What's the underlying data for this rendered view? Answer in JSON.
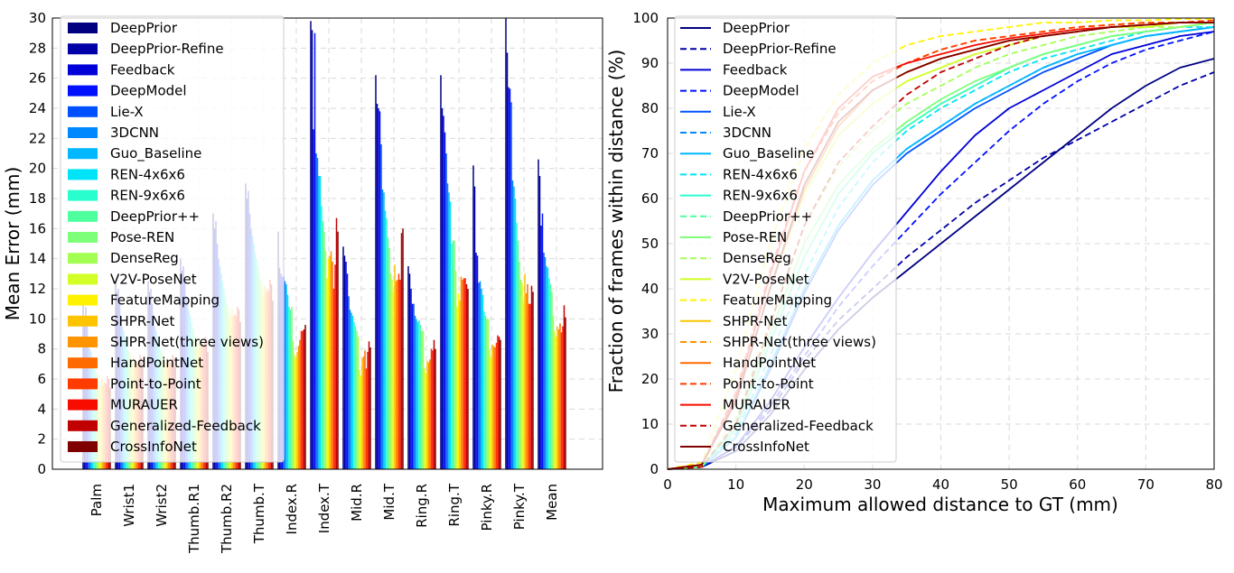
{
  "chart_data": [
    {
      "type": "bar",
      "xlabel": "",
      "ylabel": "Mean Error (mm)",
      "ylim": [
        0,
        30
      ],
      "yticks": [
        "0",
        "2",
        "4",
        "6",
        "8",
        "10",
        "12",
        "14",
        "16",
        "18",
        "20",
        "22",
        "24",
        "26",
        "28",
        "30"
      ],
      "grid": true,
      "legend_position": "upper-left",
      "categories": [
        "Palm",
        "Wrist1",
        "Wrist2",
        "Thumb.R1",
        "Thumb.R2",
        "Thumb.T",
        "Index.R",
        "Index.T",
        "Mid.R",
        "Mid.T",
        "Ring.R",
        "Ring.T",
        "Pinky.R",
        "Pinky.T",
        "Mean"
      ],
      "series": [
        {
          "name": "DeepPrior",
          "color": "#000080",
          "values": [
            11.0,
            12.5,
            12.5,
            14.0,
            17.0,
            19.0,
            15.8,
            29.8,
            14.8,
            26.2,
            13.5,
            26.2,
            20.2,
            30.0,
            20.6
          ]
        },
        {
          "name": "DeepPrior-Refine",
          "color": "#0000a8",
          "values": [
            10.2,
            11.8,
            11.8,
            13.2,
            16.0,
            18.0,
            13.4,
            29.2,
            14.2,
            24.3,
            13.0,
            24.0,
            18.8,
            27.7,
            19.5
          ]
        },
        {
          "name": "Feedback",
          "color": "#0000d8",
          "values": [
            10.8,
            12.0,
            12.0,
            13.5,
            16.5,
            18.5,
            13.0,
            22.6,
            13.8,
            24.0,
            12.0,
            23.5,
            14.4,
            25.4,
            16.2
          ]
        },
        {
          "name": "DeepModel",
          "color": "#0010ff",
          "values": [
            9.5,
            11.0,
            11.0,
            12.5,
            15.0,
            17.0,
            12.8,
            29.0,
            13.0,
            23.8,
            11.0,
            22.4,
            14.2,
            25.3,
            17.0
          ]
        },
        {
          "name": "Lie-X",
          "color": "#0050ff",
          "values": [
            8.5,
            10.0,
            10.0,
            11.5,
            14.0,
            16.0,
            12.8,
            21.0,
            11.5,
            21.6,
            11.0,
            21.0,
            12.4,
            24.4,
            14.4
          ]
        },
        {
          "name": "3DCNN",
          "color": "#0088ff",
          "values": [
            8.0,
            9.5,
            9.5,
            11.0,
            13.5,
            15.5,
            12.5,
            20.7,
            10.6,
            18.6,
            10.2,
            19.0,
            12.5,
            19.2,
            14.1
          ]
        },
        {
          "name": "Guo_Baseline",
          "color": "#00b8ff",
          "values": [
            7.8,
            9.2,
            9.2,
            10.6,
            13.0,
            15.0,
            12.3,
            19.5,
            10.4,
            18.4,
            10.0,
            18.4,
            12.0,
            18.8,
            13.5
          ]
        },
        {
          "name": "REN-4x6x6",
          "color": "#00e4f8",
          "values": [
            7.4,
            8.8,
            8.8,
            10.2,
            12.5,
            14.4,
            11.6,
            19.5,
            10.2,
            17.2,
            9.8,
            17.8,
            11.6,
            18.0,
            13.4
          ]
        },
        {
          "name": "REN-9x6x6",
          "color": "#29ffce",
          "values": [
            7.0,
            8.4,
            8.4,
            9.8,
            12.0,
            14.0,
            10.8,
            17.5,
            9.8,
            16.7,
            9.9,
            15.0,
            10.5,
            16.4,
            12.7
          ]
        },
        {
          "name": "DeepPrior++",
          "color": "#4dff9d",
          "values": [
            6.6,
            8.0,
            8.0,
            9.4,
            11.5,
            13.5,
            10.6,
            16.5,
            9.5,
            15.4,
            9.6,
            15.2,
            10.2,
            15.2,
            12.3
          ]
        },
        {
          "name": "Pose-REN",
          "color": "#7dff7a",
          "values": [
            6.4,
            7.8,
            7.8,
            9.0,
            11.0,
            13.0,
            10.8,
            15.8,
            9.2,
            14.7,
            9.2,
            15.2,
            10.0,
            13.8,
            11.8
          ]
        },
        {
          "name": "DenseReg",
          "color": "#a4ff53",
          "values": [
            6.2,
            7.6,
            7.6,
            8.8,
            10.8,
            12.6,
            8.5,
            14.5,
            8.8,
            13.0,
            9.2,
            13.2,
            10.0,
            12.6,
            10.2
          ]
        },
        {
          "name": "V2V-PoseNet",
          "color": "#d1ff26",
          "values": [
            5.8,
            7.2,
            7.2,
            8.4,
            10.4,
            12.0,
            7.6,
            12.7,
            6.6,
            12.6,
            6.7,
            10.8,
            7.9,
            12.4,
            9.2
          ]
        },
        {
          "name": "FeatureMapping",
          "color": "#fff200",
          "values": [
            5.5,
            7.0,
            7.0,
            8.0,
            10.0,
            11.5,
            7.4,
            14.0,
            6.2,
            11.8,
            6.4,
            11.7,
            7.4,
            11.2,
            8.8
          ]
        },
        {
          "name": "SHPR-Net",
          "color": "#ffc400",
          "values": [
            6.0,
            7.4,
            7.4,
            8.6,
            10.6,
            12.2,
            7.8,
            14.2,
            7.4,
            13.6,
            7.2,
            11.2,
            8.3,
            13.0,
            9.5
          ]
        },
        {
          "name": "SHPR-Net(three views)",
          "color": "#ff9400",
          "values": [
            5.6,
            7.1,
            7.1,
            8.2,
            10.2,
            11.8,
            8.2,
            14.5,
            7.5,
            12.5,
            7.1,
            12.8,
            8.2,
            11.7,
            9.3
          ]
        },
        {
          "name": "HandPointNet",
          "color": "#ff6a00",
          "values": [
            5.8,
            7.2,
            7.2,
            8.3,
            10.3,
            12.0,
            8.6,
            13.8,
            7.9,
            12.6,
            7.3,
            12.6,
            8.1,
            12.3,
            9.7
          ]
        },
        {
          "name": "Point-to-Point",
          "color": "#ff3b00",
          "values": [
            5.7,
            7.1,
            7.1,
            8.2,
            10.2,
            11.8,
            9.2,
            12.0,
            6.7,
            13.0,
            8.0,
            12.7,
            8.4,
            11.0,
            9.1
          ]
        },
        {
          "name": "MURAUER",
          "color": "#f80c00",
          "values": [
            6.2,
            7.6,
            7.6,
            8.8,
            10.8,
            12.6,
            9.2,
            13.6,
            7.8,
            12.6,
            7.9,
            12.7,
            8.9,
            11.0,
            9.5
          ]
        },
        {
          "name": "Generalized-Feedback",
          "color": "#c10000",
          "values": [
            6.0,
            7.4,
            7.4,
            8.6,
            10.6,
            12.3,
            9.3,
            16.7,
            8.5,
            15.7,
            8.6,
            12.3,
            8.8,
            12.2,
            10.9
          ]
        },
        {
          "name": "CrossInfoNet",
          "color": "#800000",
          "values": [
            5.4,
            6.8,
            6.8,
            7.8,
            9.8,
            11.2,
            9.6,
            15.8,
            8.1,
            16.0,
            8.0,
            12.0,
            8.6,
            11.8,
            10.1
          ]
        }
      ]
    },
    {
      "type": "line",
      "xlabel": "Maximum allowed distance to GT (mm)",
      "ylabel": "Fraction of frames within distance (%)",
      "xlim": [
        0,
        80
      ],
      "ylim": [
        0,
        100
      ],
      "xticks": [
        "0",
        "10",
        "20",
        "30",
        "40",
        "50",
        "60",
        "70",
        "80"
      ],
      "yticks": [
        "0",
        "10",
        "20",
        "30",
        "40",
        "50",
        "60",
        "70",
        "80",
        "90",
        "100"
      ],
      "grid": true,
      "legend_position": "upper-left",
      "x": [
        0,
        5,
        10,
        15,
        20,
        25,
        30,
        35,
        40,
        45,
        50,
        55,
        60,
        65,
        70,
        75,
        80
      ],
      "series": [
        {
          "name": "DeepPrior",
          "color": "#000080",
          "dash": false,
          "values": [
            0,
            0.5,
            4,
            12,
            22,
            31,
            38,
            44,
            50,
            56,
            62,
            68,
            74,
            80,
            85,
            89,
            91
          ]
        },
        {
          "name": "DeepPrior-Refine",
          "color": "#0000a8",
          "dash": true,
          "values": [
            0,
            0.5,
            5,
            13,
            24,
            33,
            40,
            47,
            53,
            59,
            64,
            69,
            73,
            77,
            81,
            85,
            88
          ]
        },
        {
          "name": "Feedback",
          "color": "#0000d8",
          "dash": false,
          "values": [
            0,
            0.5,
            5,
            15,
            27,
            38,
            48,
            57,
            66,
            74,
            80,
            84,
            88,
            92,
            94,
            96,
            97
          ]
        },
        {
          "name": "DeepModel",
          "color": "#0010ff",
          "dash": true,
          "values": [
            0,
            0.5,
            5,
            14,
            25,
            36,
            45,
            53,
            61,
            68,
            75,
            81,
            86,
            90,
            93,
            95,
            97
          ]
        },
        {
          "name": "Lie-X",
          "color": "#0050ff",
          "dash": false,
          "values": [
            0,
            0.5,
            7,
            22,
            39,
            53,
            63,
            70,
            75,
            80,
            84,
            88,
            91,
            94,
            96,
            97,
            98
          ]
        },
        {
          "name": "3DCNN",
          "color": "#0088ff",
          "dash": true,
          "values": [
            0,
            0.5,
            7,
            23,
            40,
            54,
            64,
            71,
            76,
            81,
            85,
            89,
            92,
            94,
            96,
            97,
            98
          ]
        },
        {
          "name": "Guo_Baseline",
          "color": "#00b8ff",
          "dash": false,
          "values": [
            0,
            0.5,
            7,
            23,
            40,
            54,
            64,
            71,
            76,
            81,
            85,
            89,
            92,
            94,
            96,
            97,
            98
          ]
        },
        {
          "name": "REN-4x6x6",
          "color": "#00e4f8",
          "dash": true,
          "values": [
            0,
            0.5,
            8,
            25,
            43,
            58,
            68,
            75,
            80,
            84,
            88,
            91,
            93,
            95,
            97,
            98,
            98
          ]
        },
        {
          "name": "REN-9x6x6",
          "color": "#29ffce",
          "dash": false,
          "values": [
            0,
            0.5,
            9,
            28,
            47,
            61,
            70,
            76,
            81,
            85,
            89,
            92,
            94,
            96,
            97,
            98,
            99
          ]
        },
        {
          "name": "DeepPrior++",
          "color": "#4dff9d",
          "dash": true,
          "values": [
            0,
            0.5,
            9,
            28,
            47,
            61,
            70,
            76,
            81,
            85,
            89,
            92,
            94,
            96,
            97,
            98,
            99
          ]
        },
        {
          "name": "Pose-REN",
          "color": "#7dff7a",
          "dash": false,
          "values": [
            0,
            0.5,
            10,
            30,
            50,
            63,
            71,
            77,
            82,
            86,
            89,
            92,
            94,
            96,
            97,
            98,
            99
          ]
        },
        {
          "name": "DenseReg",
          "color": "#a4ff53",
          "dash": true,
          "values": [
            0,
            0.5,
            11,
            33,
            54,
            67,
            75,
            81,
            85,
            89,
            92,
            94,
            96,
            97,
            98,
            98,
            99
          ]
        },
        {
          "name": "V2V-PoseNet",
          "color": "#d1ff26",
          "dash": false,
          "values": [
            0,
            1,
            15,
            40,
            61,
            74,
            81,
            86,
            89,
            92,
            94,
            96,
            97,
            98,
            98,
            99,
            99
          ]
        },
        {
          "name": "FeatureMapping",
          "color": "#fff200",
          "dash": true,
          "values": [
            0,
            1.5,
            22,
            50,
            71,
            83,
            90,
            94,
            96,
            97,
            98,
            99,
            99,
            99.5,
            99.5,
            99.8,
            99.8
          ]
        },
        {
          "name": "SHPR-Net",
          "color": "#ffc400",
          "dash": false,
          "values": [
            0,
            1,
            15,
            40,
            62,
            76,
            84,
            88,
            91,
            93,
            95,
            96,
            97,
            98,
            98.5,
            99,
            99
          ]
        },
        {
          "name": "SHPR-Net(three views)",
          "color": "#ff9400",
          "dash": true,
          "values": [
            0,
            1,
            17,
            44,
            66,
            79,
            86,
            90,
            93,
            95,
            96,
            97,
            98,
            98.5,
            99,
            99,
            99.5
          ]
        },
        {
          "name": "HandPointNet",
          "color": "#ff6a00",
          "dash": false,
          "values": [
            0,
            1,
            15,
            40,
            62,
            76,
            84,
            88,
            91,
            93,
            95,
            96,
            97,
            98,
            98.5,
            99,
            99
          ]
        },
        {
          "name": "Point-to-Point",
          "color": "#ff3b00",
          "dash": true,
          "values": [
            0,
            1,
            17,
            44,
            66,
            79,
            86,
            90,
            93,
            95,
            96,
            97,
            98,
            98.5,
            99,
            99,
            99.5
          ]
        },
        {
          "name": "MURAUER",
          "color": "#f80c00",
          "dash": false,
          "values": [
            0,
            1,
            16,
            43,
            66,
            80,
            87,
            90,
            92,
            94,
            95.5,
            96.5,
            97.5,
            98,
            98.5,
            99,
            99
          ]
        },
        {
          "name": "Generalized-Feedback",
          "color": "#c10000",
          "dash": true,
          "values": [
            0,
            0.5,
            10,
            32,
            54,
            68,
            76,
            83,
            88,
            91,
            94,
            96,
            97,
            98,
            98.5,
            99,
            99
          ]
        },
        {
          "name": "CrossInfoNet",
          "color": "#800000",
          "dash": false,
          "values": [
            0,
            1,
            15,
            40,
            63,
            77,
            84,
            88,
            91,
            93,
            95,
            96,
            97,
            98,
            98.5,
            99,
            99
          ]
        }
      ]
    }
  ]
}
